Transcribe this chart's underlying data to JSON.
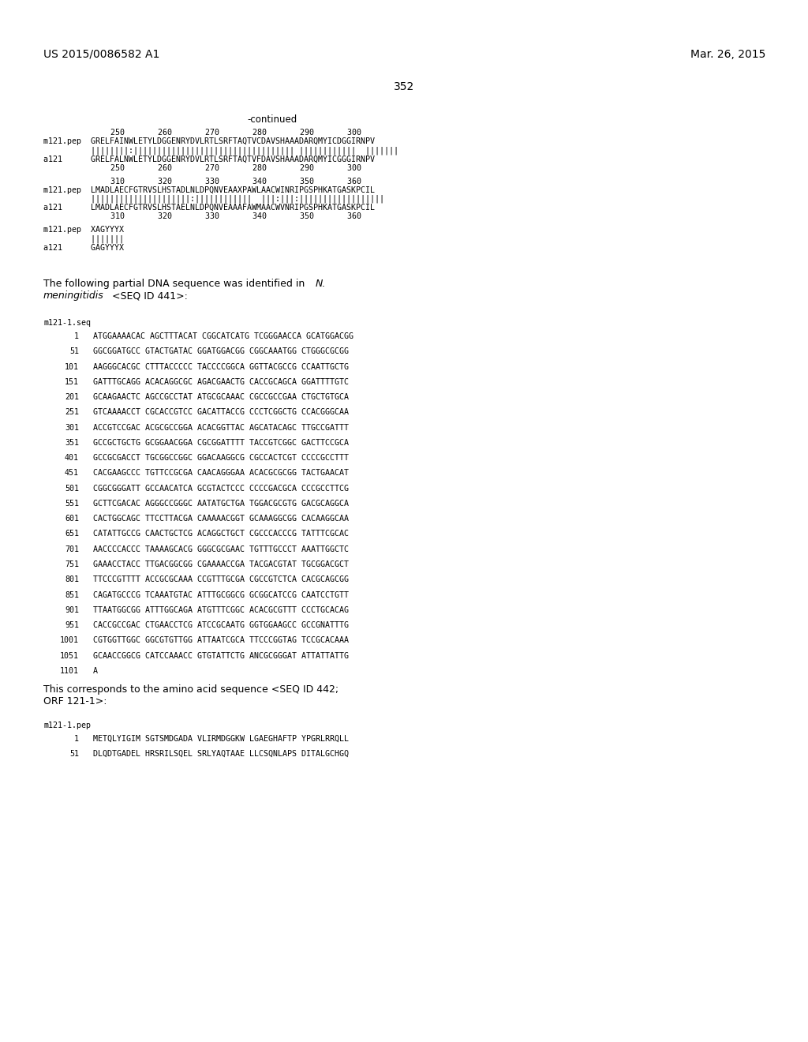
{
  "header_left": "US 2015/0086582 A1",
  "header_right": "Mar. 26, 2015",
  "page_number": "352",
  "continued_label": "-continued",
  "bg_color": "#ffffff",
  "text_color": "#000000",
  "dna_sequences": [
    [
      "1",
      "ATGGAAAACAC AGCTTTACAT CGGCATCATG TCGGGAACCA GCATGGACGG"
    ],
    [
      "51",
      "GGCGGATGCC GTACTGATAC GGATGGACGG CGGCAAATGG CTGGGCGCGG"
    ],
    [
      "101",
      "AAGGGCACGC CTTTACCCCC TACCCCGGCA GGTTACGCCG CCAATTGCTG"
    ],
    [
      "151",
      "GATTTGCAGG ACACAGGCGC AGACGAACTG CACCGCAGCA GGATTTTGTC"
    ],
    [
      "201",
      "GCAAGAACTC AGCCGCCTAT ATGCGCAAAC CGCCGCCGAA CTGCTGTGCA"
    ],
    [
      "251",
      "GTCAAAACCT CGCACCGTCC GACATTACCG CCCTCGGCTG CCACGGGCAA"
    ],
    [
      "301",
      "ACCGTCCGAC ACGCGCCGGA ACACGGTTAC AGCATACAGC TTGCCGATTT"
    ],
    [
      "351",
      "GCCGCTGCTG GCGGAACGGA CGCGGATTTT TACCGTCGGC GACTTCCGCA"
    ],
    [
      "401",
      "GCCGCGACCT TGCGGCCGGC GGACAAGGCG CGCCACTCGT CCCCGCCTTT"
    ],
    [
      "451",
      "CACGAAGCCC TGTTCCGCGA CAACAGGGAA ACACGCGCGG TACTGAACAT"
    ],
    [
      "501",
      "CGGCGGGATT GCCAACATCA GCGTACTCCC CCCCGACGCA CCCGCCTTCG"
    ],
    [
      "551",
      "GCTTCGACAC AGGGCCGGGC AATATGCTGA TGGACGCGTG GACGCAGGCA"
    ],
    [
      "601",
      "CACTGGCAGC TTCCTTACGA CAAAAACGGT GCAAAGGCGG CACAAGGCAA"
    ],
    [
      "651",
      "CATATTGCCG CAACTGCTCG ACAGGCTGCT CGCCCACCCG TATTTCGCAC"
    ],
    [
      "701",
      "AACCCCACCC TAAAAGCACG GGGCGCGAAC TGTTTGCCCT AAATTGGCTC"
    ],
    [
      "751",
      "GAAACCTACC TTGACGGCGG CGAAAACCGA TACGACGTAT TGCGGACGCT"
    ],
    [
      "801",
      "TTCCCGTTTT ACCGCGCAAA CCGTTTGCGA CGCCGTCTCA CACGCAGCGG"
    ],
    [
      "851",
      "CAGATGCCCG TCAAATGTAC ATTTGCGGCG GCGGCATCCG CAATCCTGTT"
    ],
    [
      "901",
      "TTAATGGCGG ATTTGGCAGA ATGTTTCGGC ACACGCGTTT CCCTGCACAG"
    ],
    [
      "951",
      "CACCGCCGAC CTGAACCTCG ATCCGCAATG GGTGGAAGCC GCCGNATTTG"
    ],
    [
      "1001",
      "CGTGGTTGGC GGCGTGTTGG ATTAATCGCA TTCCCGGTAG TCCGCACAAA"
    ],
    [
      "1051",
      "GCAACCGGCG CATCCAAACC GTGTATTCTG ANCGCGGGAT ATTATTATTG"
    ],
    [
      "1101",
      "A"
    ]
  ],
  "aa_sequences": [
    [
      "1",
      "METQLYIGIM SGTSMDGADA VLIRMDGGKW LGAEGHAFTP YPGRLRRQLL"
    ],
    [
      "51",
      "DLQDTGADEL HRSRILSQEL SRLYAQTAAE LLCSQNLAPS DITALGCHGQ"
    ]
  ]
}
